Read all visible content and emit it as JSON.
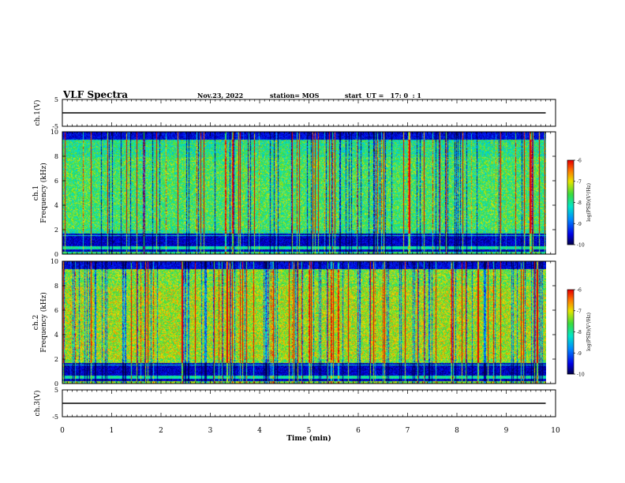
{
  "header": {
    "title": "VLF Spectra",
    "date": "Nov.23, 2022",
    "station": "station= MOS",
    "start": "start  UT =   17: 0  : 1"
  },
  "chart_data": [
    {
      "type": "line",
      "title": "",
      "ylabel": "ch.1(V)",
      "xlabel": "",
      "xlim": [
        0,
        10
      ],
      "ylim": [
        -5,
        5
      ],
      "yticks": [
        "5",
        "-5"
      ],
      "series": [
        {
          "name": "",
          "x": [
            0,
            9.8
          ],
          "y": [
            0,
            0
          ]
        }
      ]
    },
    {
      "type": "heatmap",
      "ylabel": "ch.1\nFrequency (kHz)",
      "ylabel_lines": [
        "ch.1",
        "Frequency (kHz)"
      ],
      "xlim": [
        0,
        10
      ],
      "ylim": [
        0,
        10
      ],
      "yticks": [
        "0",
        "2",
        "4",
        "6",
        "8",
        "10"
      ],
      "colorbar": {
        "label": "log(PSD)(V²/Hz)",
        "ticks": [
          "-6",
          "-7",
          "-8",
          "-9",
          "-10"
        ],
        "range": [
          -10,
          -6
        ]
      },
      "data_end_min": 9.8
    },
    {
      "type": "heatmap",
      "ylabel": "ch.2\nFrequency (kHz)",
      "ylabel_lines": [
        "ch.2",
        "Frequency (kHz)"
      ],
      "xlim": [
        0,
        10
      ],
      "ylim": [
        0,
        10
      ],
      "yticks": [
        "0",
        "2",
        "4",
        "6",
        "8",
        "10"
      ],
      "colorbar": {
        "label": "log(PSD)(V²/Hz)",
        "ticks": [
          "-6",
          "-7",
          "-8",
          "-9",
          "-10"
        ],
        "range": [
          -10,
          -6
        ]
      },
      "data_end_min": 9.8
    },
    {
      "type": "line",
      "ylabel": "ch.3(V)",
      "xlabel": "Time (min)",
      "xlim": [
        0,
        10
      ],
      "ylim": [
        -5,
        5
      ],
      "yticks": [
        "5",
        "-5"
      ],
      "xticks": [
        "0",
        "1",
        "2",
        "3",
        "4",
        "5",
        "6",
        "7",
        "8",
        "9",
        "10"
      ],
      "series": [
        {
          "name": "",
          "x": [
            0,
            9.8
          ],
          "y": [
            0,
            0
          ]
        }
      ]
    }
  ]
}
